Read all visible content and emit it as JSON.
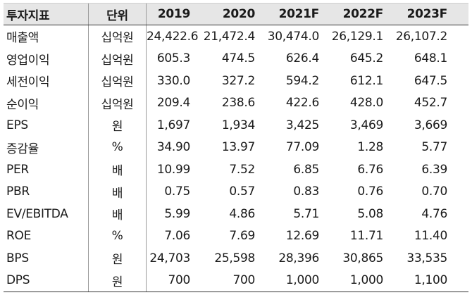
{
  "headers": [
    "투자지표",
    "단위",
    "2019",
    "2020",
    "2021F",
    "2022F",
    "2023F"
  ],
  "rows": [
    {
      "label": "매출액",
      "unit": "십억원",
      "values": [
        "24,422.6",
        "21,472.4",
        "30,474.0",
        "26,129.1",
        "26,107.2"
      ]
    },
    {
      "label": "영업이익",
      "unit": "십억원",
      "values": [
        "605.3",
        "474.5",
        "626.4",
        "645.2",
        "648.1"
      ]
    },
    {
      "label": "세전이익",
      "unit": "십억원",
      "values": [
        "330.0",
        "327.2",
        "594.2",
        "612.1",
        "647.5"
      ]
    },
    {
      "label": "순이익",
      "unit": "십억원",
      "values": [
        "209.4",
        "238.6",
        "422.6",
        "428.0",
        "452.7"
      ]
    },
    {
      "label": "EPS",
      "unit": "원",
      "values": [
        "1,697",
        "1,934",
        "3,425",
        "3,469",
        "3,669"
      ]
    },
    {
      "label": "증감율",
      "unit": "%",
      "values": [
        "34.90",
        "13.97",
        "77.09",
        "1.28",
        "5.77"
      ]
    },
    {
      "label": "PER",
      "unit": "배",
      "values": [
        "10.99",
        "7.52",
        "6.85",
        "6.76",
        "6.39"
      ]
    },
    {
      "label": "PBR",
      "unit": "배",
      "values": [
        "0.75",
        "0.57",
        "0.83",
        "0.76",
        "0.70"
      ]
    },
    {
      "label": "EV/EBITDA",
      "unit": "배",
      "values": [
        "5.99",
        "4.86",
        "5.71",
        "5.08",
        "4.76"
      ]
    },
    {
      "label": "ROE",
      "unit": "%",
      "values": [
        "7.06",
        "7.69",
        "12.69",
        "11.71",
        "11.40"
      ]
    },
    {
      "label": "BPS",
      "unit": "원",
      "values": [
        "24,703",
        "25,598",
        "28,396",
        "30,865",
        "33,535"
      ]
    },
    {
      "label": "DPS",
      "unit": "원",
      "values": [
        "700",
        "700",
        "1,000",
        "1,000",
        "1,100"
      ]
    }
  ]
}
